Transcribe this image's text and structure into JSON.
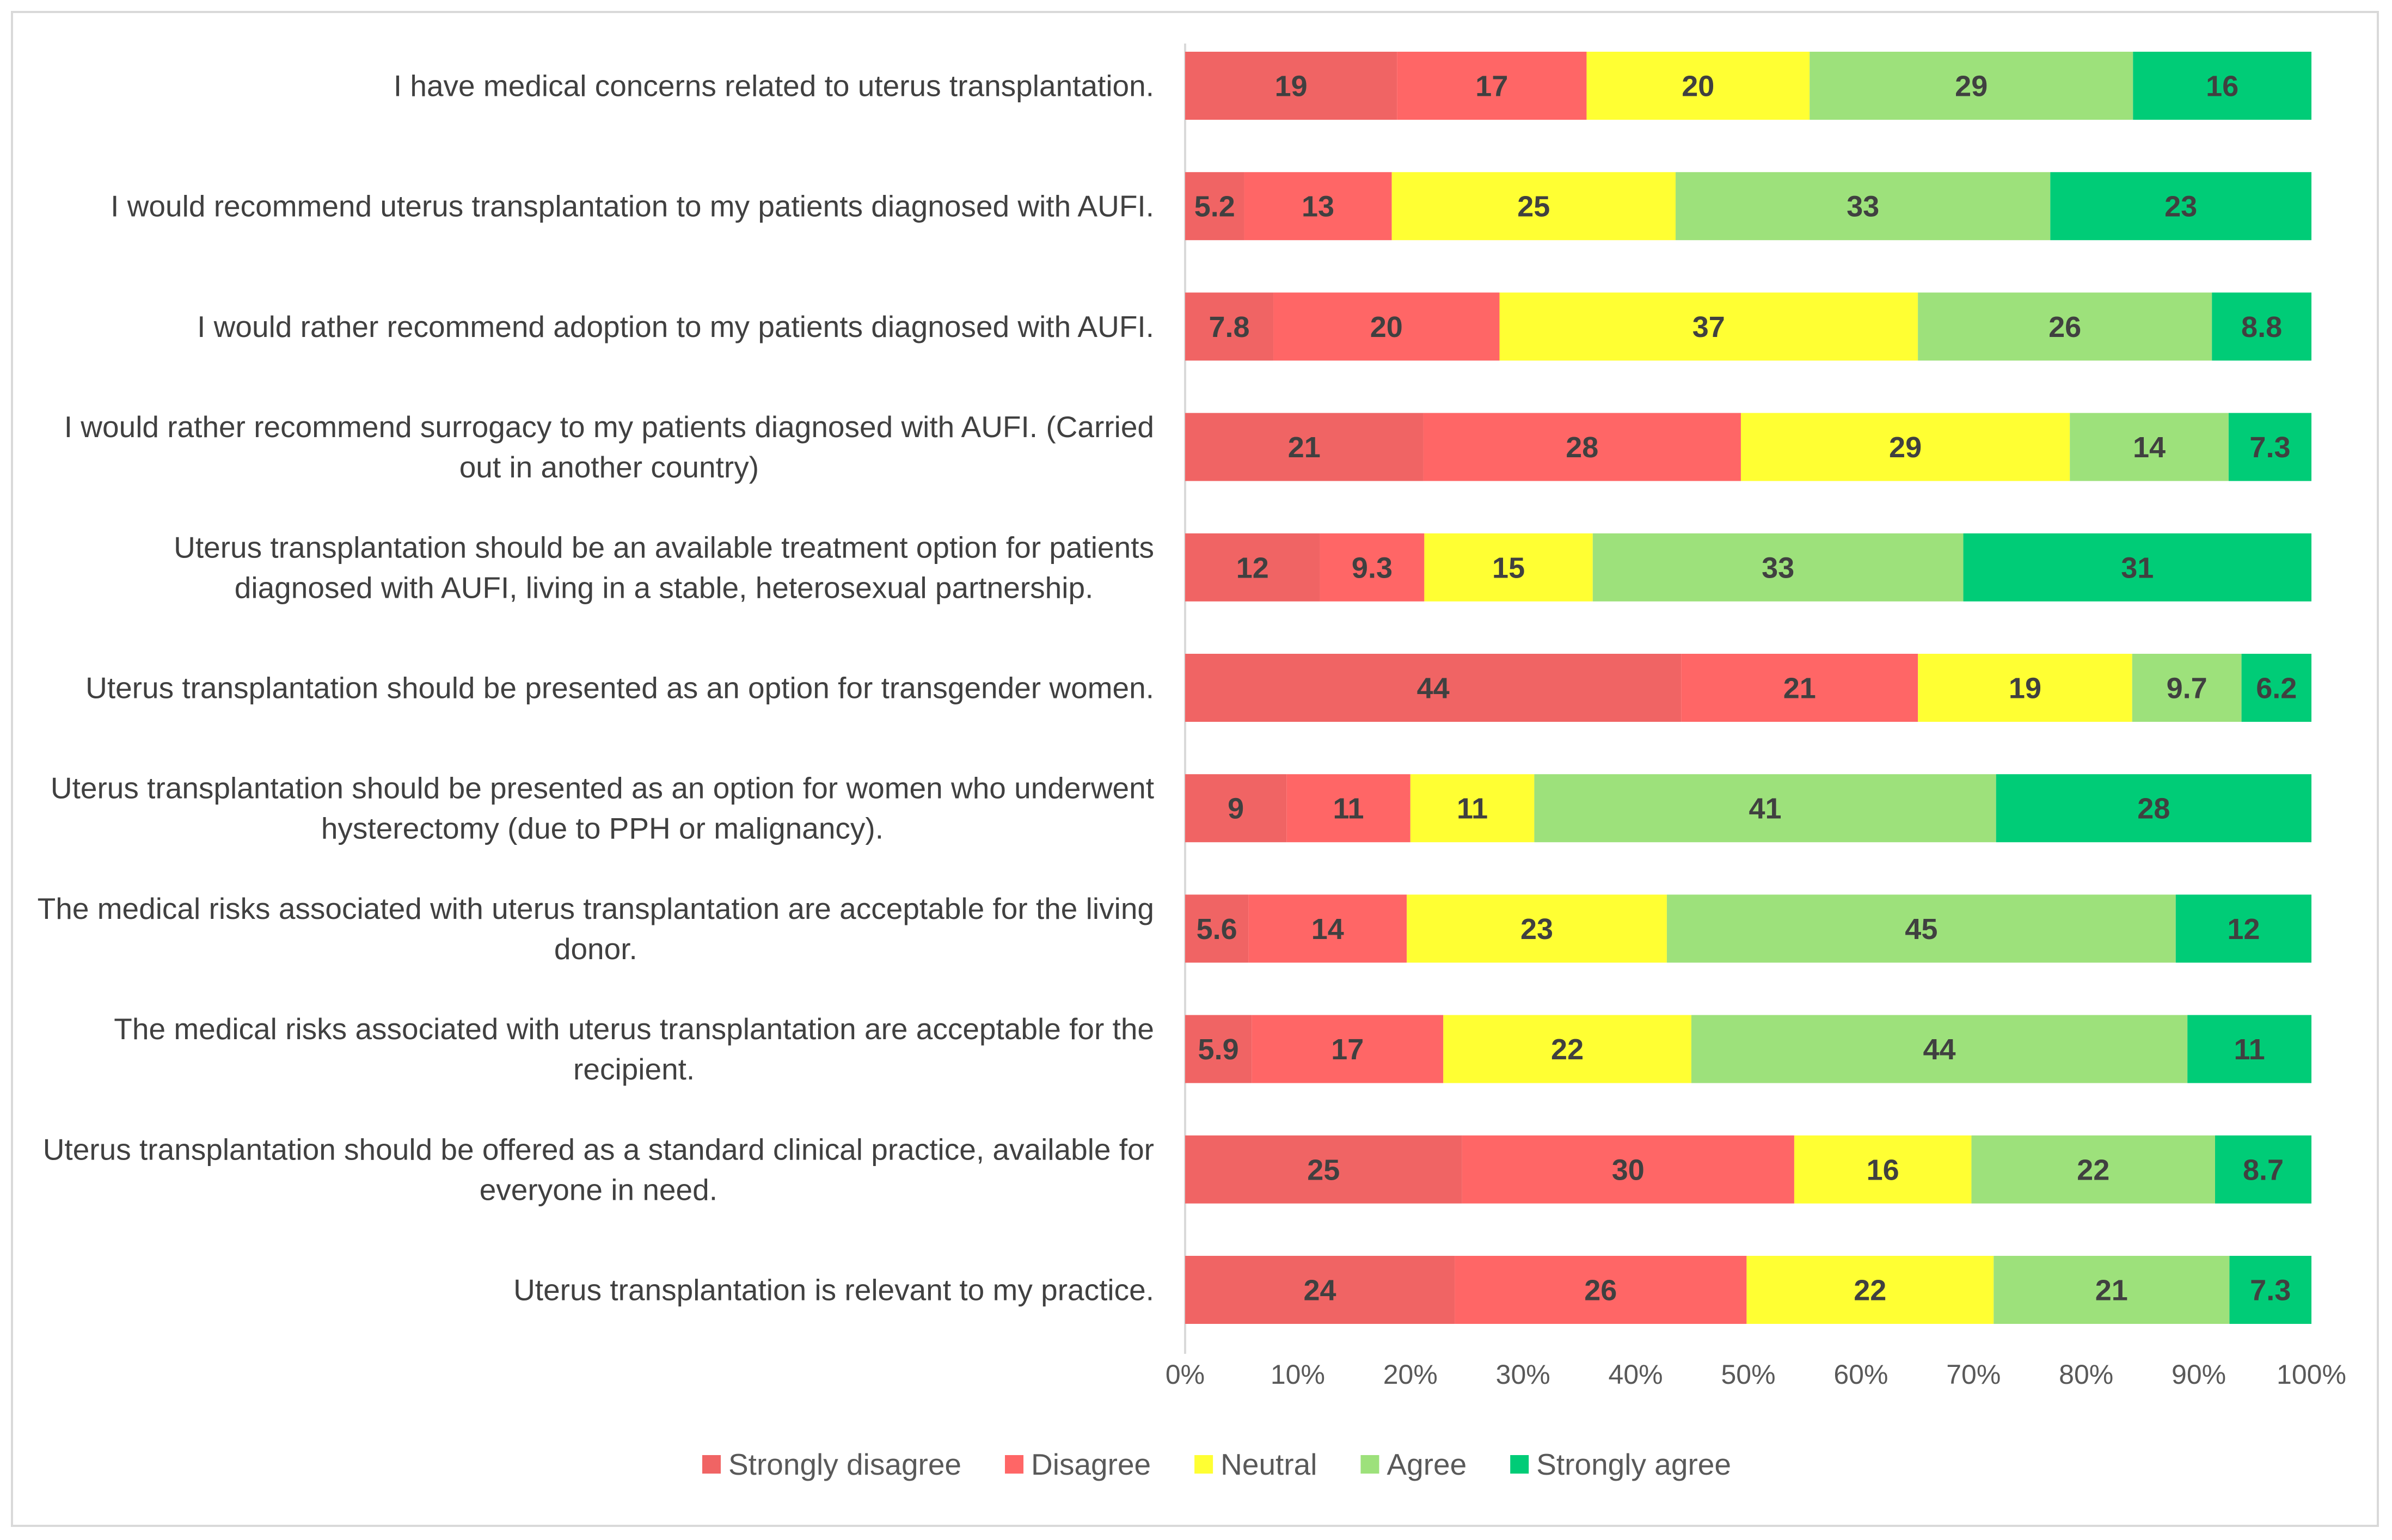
{
  "chart_data": {
    "type": "bar",
    "orientation": "horizontal",
    "stacked": "percent",
    "title": "",
    "xlabel": "",
    "ylabel": "",
    "xlim": [
      0,
      100
    ],
    "x_tick_labels": [
      "0%",
      "10%",
      "20%",
      "30%",
      "40%",
      "50%",
      "60%",
      "70%",
      "80%",
      "90%",
      "100%"
    ],
    "legend_position": "bottom",
    "categories": [
      [
        "I have medical concerns related to uterus transplantation."
      ],
      [
        "I would recommend uterus transplantation to my patients diagnosed with AUFI."
      ],
      [
        "I would rather recommend adoption to my patients diagnosed with AUFI."
      ],
      [
        "I would rather recommend surrogacy to my patients diagnosed with AUFI. (Carried",
        "out in another country)"
      ],
      [
        "Uterus transplantation should be an available treatment option for patients",
        "diagnosed with AUFI, living in a stable, heterosexual partnership."
      ],
      [
        "Uterus transplantation should be presented as an option for transgender women."
      ],
      [
        "Uterus transplantation should be presented as an option for women who underwent",
        "hysterectomy (due to PPH or malignancy)."
      ],
      [
        "The medical risks associated with uterus transplantation are acceptable for the living",
        "donor."
      ],
      [
        "The medical risks associated with uterus transplantation are acceptable for the",
        "recipient."
      ],
      [
        "Uterus transplantation should be offered as a standard clinical practice, available for",
        "everyone in need."
      ],
      [
        "Uterus transplantation is relevant to my practice."
      ]
    ],
    "series": [
      {
        "name": "Strongly disagree",
        "color": "#F06464",
        "values": [
          19,
          5.2,
          7.8,
          21,
          12,
          44,
          9,
          5.6,
          5.9,
          25,
          24
        ]
      },
      {
        "name": "Disagree",
        "color": "#FF6666",
        "values": [
          17,
          13,
          20,
          28,
          9.3,
          21,
          11,
          14,
          17,
          30,
          26
        ]
      },
      {
        "name": "Neutral",
        "color": "#FFFF33",
        "values": [
          20,
          25,
          37,
          29,
          15,
          19,
          11,
          23,
          22,
          16,
          22
        ]
      },
      {
        "name": "Agree",
        "color": "#9DE17B",
        "values": [
          29,
          33,
          26,
          14,
          33,
          9.7,
          41,
          45,
          44,
          22,
          21
        ]
      },
      {
        "name": "Strongly agree",
        "color": "#00CC77",
        "values": [
          16,
          23,
          8.8,
          7.3,
          31,
          6.2,
          28,
          12,
          11,
          8.7,
          7.3
        ]
      }
    ]
  }
}
